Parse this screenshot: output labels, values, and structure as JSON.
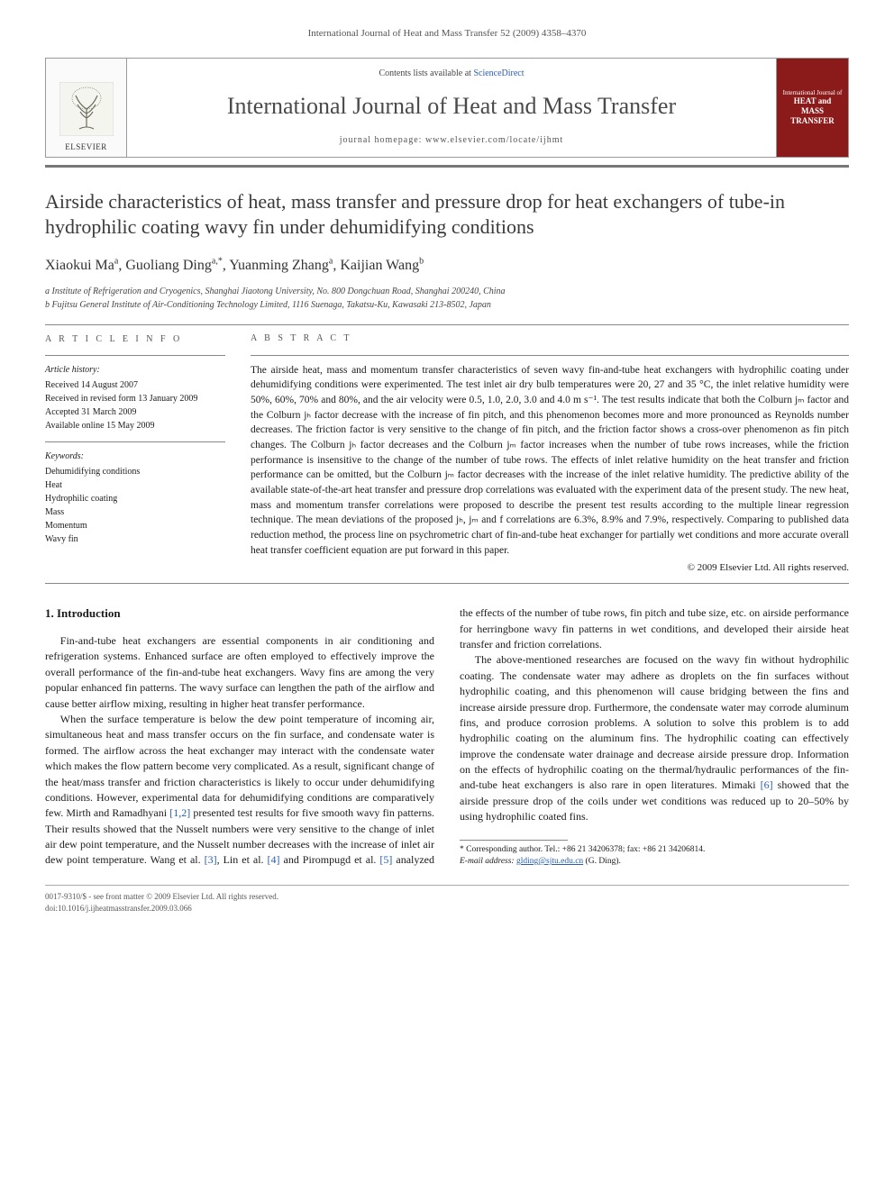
{
  "header_citation": "International Journal of Heat and Mass Transfer 52 (2009) 4358–4370",
  "banner": {
    "elsevier": "ELSEVIER",
    "contents_prefix": "Contents lists available at ",
    "contents_link": "ScienceDirect",
    "journal_title": "International Journal of Heat and Mass Transfer",
    "homepage_prefix": "journal homepage: ",
    "homepage_url": "www.elsevier.com/locate/ijhmt",
    "cover_line1": "International Journal of",
    "cover_line2": "HEAT and MASS",
    "cover_line3": "TRANSFER"
  },
  "article_title": "Airside characteristics of heat, mass transfer and pressure drop for heat exchangers of tube-in hydrophilic coating wavy fin under dehumidifying conditions",
  "authors_html": "Xiaokui Ma<sup>a</sup>, Guoliang Ding<sup>a,*</sup>, Yuanming Zhang<sup>a</sup>, Kaijian Wang<sup>b</sup>",
  "affiliations": [
    "a Institute of Refrigeration and Cryogenics, Shanghai Jiaotong University, No. 800 Dongchuan Road, Shanghai 200240, China",
    "b Fujitsu General Institute of Air-Conditioning Technology Limited, 1116 Suenaga, Takatsu-Ku, Kawasaki 213-8502, Japan"
  ],
  "article_info": {
    "heading": "A R T I C L E   I N F O",
    "history_label": "Article history:",
    "history": [
      "Received 14 August 2007",
      "Received in revised form 13 January 2009",
      "Accepted 31 March 2009",
      "Available online 15 May 2009"
    ],
    "keywords_label": "Keywords:",
    "keywords": [
      "Dehumidifying conditions",
      "Heat",
      "Hydrophilic coating",
      "Mass",
      "Momentum",
      "Wavy fin"
    ]
  },
  "abstract": {
    "heading": "A B S T R A C T",
    "text": "The airside heat, mass and momentum transfer characteristics of seven wavy fin-and-tube heat exchangers with hydrophilic coating under dehumidifying conditions were experimented. The test inlet air dry bulb temperatures were 20, 27 and 35 °C, the inlet relative humidity were 50%, 60%, 70% and 80%, and the air velocity were 0.5, 1.0, 2.0, 3.0 and 4.0 m s⁻¹. The test results indicate that both the Colburn jₘ factor and the Colburn jₕ factor decrease with the increase of fin pitch, and this phenomenon becomes more and more pronounced as Reynolds number decreases. The friction factor is very sensitive to the change of fin pitch, and the friction factor shows a cross-over phenomenon as fin pitch changes. The Colburn jₕ factor decreases and the Colburn jₘ factor increases when the number of tube rows increases, while the friction performance is insensitive to the change of the number of tube rows. The effects of inlet relative humidity on the heat transfer and friction performance can be omitted, but the Colburn jₘ factor decreases with the increase of the inlet relative humidity. The predictive ability of the available state-of-the-art heat transfer and pressure drop correlations was evaluated with the experiment data of the present study. The new heat, mass and momentum transfer correlations were proposed to describe the present test results according to the multiple linear regression technique. The mean deviations of the proposed jₕ, jₘ and f correlations are 6.3%, 8.9% and 7.9%, respectively. Comparing to published data reduction method, the process line on psychrometric chart of fin-and-tube heat exchanger for partially wet conditions and more accurate overall heat transfer coefficient equation are put forward in this paper.",
    "copyright": "© 2009 Elsevier Ltd. All rights reserved."
  },
  "body": {
    "section_heading": "1. Introduction",
    "p1": "Fin-and-tube heat exchangers are essential components in air conditioning and refrigeration systems. Enhanced surface are often employed to effectively improve the overall performance of the fin-and-tube heat exchangers. Wavy fins are among the very popular enhanced fin patterns. The wavy surface can lengthen the path of the airflow and cause better airflow mixing, resulting in higher heat transfer performance.",
    "p2_a": "When the surface temperature is below the dew point temperature of incoming air, simultaneous heat and mass transfer occurs on the fin surface, and condensate water is formed. The airflow across the heat exchanger may interact with the condensate water which makes the flow pattern become very complicated. As a result, significant change of the heat/mass transfer and friction characteristics is likely to occur under dehumidifying conditions. However, experimental data for dehumidifying conditions are comparatively few. Mirth and Ramadhyani ",
    "p2_ref1": "[1,2]",
    "p2_b": " presented test results for five smooth wavy fin patterns. Their",
    "p3_a": "results showed that the Nusselt numbers were very sensitive to the change of inlet air dew point temperature, and the Nusselt number decreases with the increase of inlet air dew point temperature. Wang et al. ",
    "p3_ref3": "[3]",
    "p3_b": ", Lin et al. ",
    "p3_ref4": "[4]",
    "p3_c": " and Pirompugd et al. ",
    "p3_ref5": "[5]",
    "p3_d": " analyzed the effects of the number of tube rows, fin pitch and tube size, etc. on airside performance for herringbone wavy fin patterns in wet conditions, and developed their airside heat transfer and friction correlations.",
    "p4_a": "The above-mentioned researches are focused on the wavy fin without hydrophilic coating. The condensate water may adhere as droplets on the fin surfaces without hydrophilic coating, and this phenomenon will cause bridging between the fins and increase airside pressure drop. Furthermore, the condensate water may corrode aluminum fins, and produce corrosion problems. A solution to solve this problem is to add hydrophilic coating on the aluminum fins. The hydrophilic coating can effectively improve the condensate water drainage and decrease airside pressure drop. Information on the effects of hydrophilic coating on the thermal/hydraulic performances of the fin-and-tube heat exchangers is also rare in open literatures. Mimaki ",
    "p4_ref6": "[6]",
    "p4_b": " showed that the airside pressure drop of the coils under wet conditions was reduced up to 20–50% by using hydrophilic coated fins."
  },
  "footnote": {
    "corr": "* Corresponding author. Tel.: +86 21 34206378; fax: +86 21 34206814.",
    "email_label": "E-mail address:",
    "email": "glding@sjtu.edu.cn",
    "email_who": "(G. Ding)."
  },
  "footer": {
    "left1": "0017-9310/$ - see front matter © 2009 Elsevier Ltd. All rights reserved.",
    "left2": "doi:10.1016/j.ijheatmasstransfer.2009.03.066"
  }
}
